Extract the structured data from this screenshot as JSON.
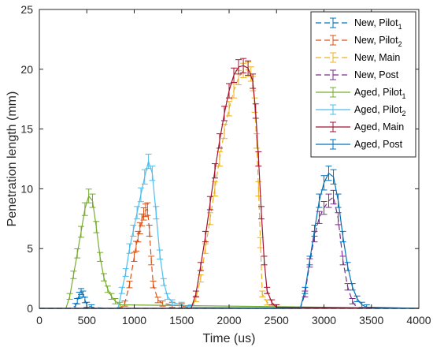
{
  "chart_data": {
    "type": "line",
    "xlabel": "Time (us)",
    "ylabel": "Penetration length (mm)",
    "xlim": [
      0,
      4000
    ],
    "ylim": [
      0,
      25
    ],
    "xticks": [
      0,
      500,
      1000,
      1500,
      2000,
      2500,
      3000,
      3500,
      4000
    ],
    "yticks": [
      0,
      5,
      10,
      15,
      20,
      25
    ],
    "xtick_labels": [
      "0",
      "500",
      "1000",
      "1500",
      "2000",
      "2500",
      "3000",
      "3500",
      "4000"
    ],
    "ytick_labels": [
      "0",
      "5",
      "10",
      "15",
      "20",
      "25"
    ],
    "grid": false,
    "legend_position": "top-right",
    "series": [
      {
        "name": "New, Pilot",
        "subscript": "1",
        "color": "#0072BD",
        "dash": "dashed",
        "x": [
          0,
          300,
          350,
          380,
          400,
          420,
          440,
          460,
          480,
          500,
          550,
          600,
          700,
          800,
          1000,
          1500,
          2000,
          2500,
          2800,
          3500,
          4000
        ],
        "y": [
          0,
          0,
          0.05,
          0.2,
          0.6,
          1.1,
          1.4,
          1.2,
          0.7,
          0.3,
          0.1,
          0.05,
          0.02,
          0,
          0,
          0,
          0,
          0,
          0,
          0,
          0
        ]
      },
      {
        "name": "New, Pilot",
        "subscript": "2",
        "color": "#D95319",
        "dash": "dashed",
        "x": [
          0,
          850,
          900,
          950,
          1000,
          1020,
          1040,
          1060,
          1080,
          1100,
          1120,
          1140,
          1160,
          1180,
          1200,
          1250,
          1300,
          1400,
          1500,
          1600,
          4000
        ],
        "y": [
          0,
          0,
          0.4,
          2.0,
          4.3,
          5.2,
          6.0,
          6.7,
          7.4,
          7.9,
          8.2,
          8.3,
          6.5,
          4.0,
          2.0,
          0.7,
          0.4,
          0.3,
          0.2,
          0,
          0
        ]
      },
      {
        "name": "New, Main",
        "subscript": "",
        "color": "#EDB120",
        "dash": "dashed",
        "x": [
          0,
          1600,
          1650,
          1700,
          1750,
          1800,
          1850,
          1900,
          1950,
          2000,
          2050,
          2100,
          2150,
          2200,
          2230,
          2250,
          2270,
          2290,
          2310,
          2330,
          2350,
          2400,
          2500,
          4000
        ],
        "y": [
          0,
          0,
          0.8,
          2.5,
          5.0,
          7.5,
          10.0,
          12.5,
          14.8,
          16.7,
          18.2,
          19.3,
          19.9,
          20.0,
          19.6,
          18.8,
          17.0,
          14.0,
          10.0,
          5.5,
          1.2,
          0.5,
          0.1,
          0
        ]
      },
      {
        "name": "New, Post",
        "subscript": "",
        "color": "#7E2F8E",
        "dash": "dashed",
        "x": [
          0,
          2750,
          2800,
          2850,
          2900,
          2950,
          3000,
          3050,
          3100,
          3150,
          3200,
          3250,
          3300,
          3350,
          4000
        ],
        "y": [
          0,
          0,
          1.2,
          3.8,
          6.0,
          7.6,
          8.4,
          9.0,
          9.3,
          7.5,
          4.0,
          1.8,
          0.6,
          0,
          0
        ]
      },
      {
        "name": "Aged, Pilot",
        "subscript": "1",
        "color": "#77AC30",
        "dash": "solid",
        "x": [
          0,
          280,
          320,
          360,
          400,
          440,
          480,
          520,
          560,
          600,
          640,
          680,
          720,
          760,
          800,
          850,
          4000
        ],
        "y": [
          0,
          0,
          1.0,
          2.8,
          4.6,
          6.4,
          8.3,
          9.4,
          9.0,
          6.8,
          4.3,
          2.6,
          1.6,
          1.0,
          0.6,
          0.3,
          0
        ]
      },
      {
        "name": "Aged, Pilot",
        "subscript": "2",
        "color": "#4DBEEE",
        "dash": "solid",
        "x": [
          0,
          830,
          870,
          910,
          950,
          990,
          1030,
          1070,
          1110,
          1150,
          1190,
          1230,
          1270,
          1310,
          1350,
          1400,
          1500,
          1600,
          4000
        ],
        "y": [
          0,
          0,
          1.5,
          3.0,
          5.0,
          6.5,
          8.0,
          9.5,
          11.0,
          12.3,
          11.3,
          8.0,
          4.5,
          2.2,
          1.0,
          0.5,
          0.3,
          0.1,
          0
        ]
      },
      {
        "name": "Aged, Main",
        "subscript": "",
        "color": "#A2142F",
        "dash": "solid",
        "x": [
          0,
          1600,
          1650,
          1700,
          1750,
          1800,
          1850,
          1900,
          1950,
          2000,
          2050,
          2100,
          2150,
          2200,
          2250,
          2280,
          2310,
          2340,
          2370,
          2400,
          2450,
          2500,
          4000
        ],
        "y": [
          0,
          0,
          1.2,
          3.5,
          6.0,
          8.8,
          11.5,
          14.0,
          16.3,
          18.2,
          19.5,
          20.2,
          20.3,
          20.1,
          19.0,
          16.5,
          12.5,
          8.0,
          4.0,
          1.5,
          0.5,
          0.1,
          0
        ]
      },
      {
        "name": "Aged, Post",
        "subscript": "",
        "color": "#0072BD",
        "dash": "solid",
        "x": [
          0,
          2750,
          2800,
          2850,
          2900,
          2950,
          3000,
          3050,
          3100,
          3150,
          3200,
          3250,
          3300,
          3350,
          3400,
          3450,
          4000
        ],
        "y": [
          0,
          0,
          1.5,
          4.0,
          6.5,
          9.0,
          10.5,
          11.3,
          11.0,
          9.0,
          6.0,
          3.5,
          1.8,
          0.8,
          0.3,
          0.1,
          0
        ]
      }
    ]
  }
}
